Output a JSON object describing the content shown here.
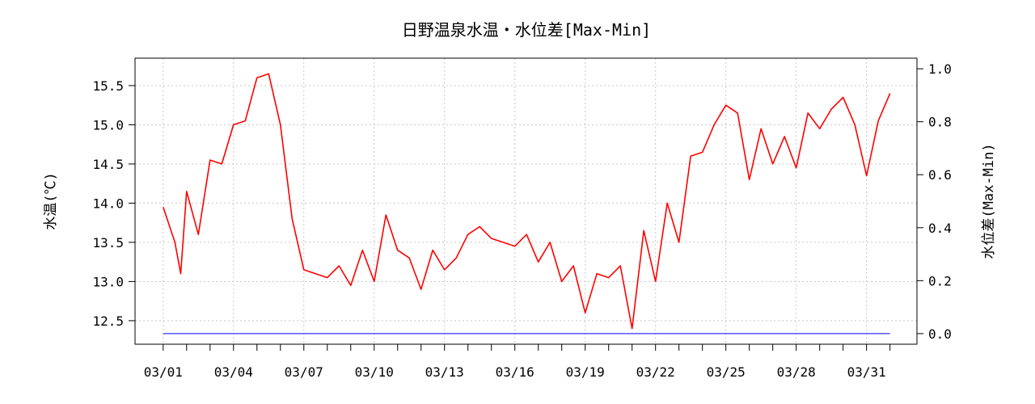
{
  "chart_data": {
    "type": "line",
    "title": "日野温泉水温・水位差[Max-Min]",
    "ylabel": "水温(℃)",
    "ylabel_right": "水位差(Max-Min)",
    "xlim": [
      "03/01",
      "04/01"
    ],
    "x_tick_labels": [
      "03/01",
      "03/04",
      "03/07",
      "03/10",
      "03/13",
      "03/16",
      "03/19",
      "03/22",
      "03/25",
      "03/28",
      "03/31"
    ],
    "ylim": [
      12.2,
      15.85
    ],
    "y_ticks": [
      12.5,
      13.0,
      13.5,
      14.0,
      14.5,
      15.0,
      15.5
    ],
    "y_tick_labels": [
      "12.5",
      "13.0",
      "13.5",
      "14.0",
      "14.5",
      "15.0",
      "15.5"
    ],
    "ylim_right": [
      -0.04,
      1.04
    ],
    "y_ticks_right": [
      0.0,
      0.2,
      0.4,
      0.6,
      0.8,
      1.0
    ],
    "y_tick_labels_right": [
      "0.0",
      "0.2",
      "0.4",
      "0.6",
      "0.8",
      "1.0"
    ],
    "grid": true,
    "series": [
      {
        "axis": "left",
        "color": "#ff0000",
        "x": [
          "03/01 00:00",
          "03/01 12:00",
          "03/01 18:00",
          "03/02 00:00",
          "03/02 12:00",
          "03/03 00:00",
          "03/03 12:00",
          "03/04 00:00",
          "03/04 12:00",
          "03/05 00:00",
          "03/05 12:00",
          "03/06 00:00",
          "03/06 12:00",
          "03/07 00:00",
          "03/07 12:00",
          "03/08 00:00",
          "03/08 12:00",
          "03/09 00:00",
          "03/09 12:00",
          "03/10 00:00",
          "03/10 12:00",
          "03/11 00:00",
          "03/11 12:00",
          "03/12 00:00",
          "03/12 12:00",
          "03/13 00:00",
          "03/13 12:00",
          "03/14 00:00",
          "03/14 12:00",
          "03/15 00:00",
          "03/15 12:00",
          "03/16 00:00",
          "03/16 12:00",
          "03/17 00:00",
          "03/17 12:00",
          "03/18 00:00",
          "03/18 12:00",
          "03/19 00:00",
          "03/19 12:00",
          "03/20 00:00",
          "03/20 12:00",
          "03/21 00:00",
          "03/21 12:00",
          "03/22 00:00",
          "03/22 12:00",
          "03/23 00:00",
          "03/23 12:00",
          "03/24 00:00",
          "03/24 12:00",
          "03/25 00:00",
          "03/25 12:00",
          "03/26 00:00",
          "03/26 12:00",
          "03/27 00:00",
          "03/27 12:00",
          "03/28 00:00",
          "03/28 12:00",
          "03/29 00:00",
          "03/29 12:00",
          "03/30 00:00",
          "03/30 12:00",
          "03/31 00:00",
          "03/31 12:00",
          "04/01 00:00"
        ],
        "values": [
          13.95,
          13.5,
          13.1,
          14.15,
          13.6,
          14.55,
          14.5,
          15.0,
          15.05,
          15.6,
          15.65,
          15.0,
          13.8,
          13.15,
          13.1,
          13.05,
          13.2,
          12.95,
          13.4,
          13.0,
          13.85,
          13.4,
          13.3,
          12.9,
          13.4,
          13.15,
          13.3,
          13.6,
          13.7,
          13.55,
          13.5,
          13.45,
          13.6,
          13.25,
          13.5,
          13.0,
          13.2,
          12.6,
          13.1,
          13.05,
          13.2,
          12.4,
          13.65,
          13.0,
          14.0,
          13.5,
          14.6,
          14.65,
          15.0,
          15.25,
          15.15,
          14.3,
          14.95,
          14.5,
          14.85,
          14.45,
          15.15,
          14.95,
          15.2,
          15.35,
          15.0,
          14.35,
          15.05,
          15.4
        ]
      },
      {
        "axis": "right",
        "color": "#0000ff",
        "x": [
          "03/01 00:00",
          "04/01 00:00"
        ],
        "values": [
          0.0,
          0.0
        ]
      }
    ]
  }
}
